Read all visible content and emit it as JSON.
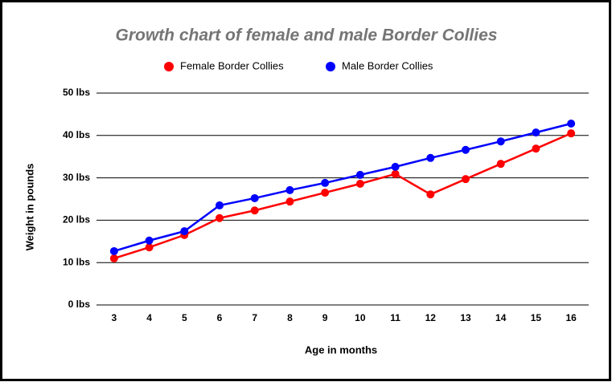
{
  "chart_data": {
    "type": "line",
    "title": "Growth chart of female and male Border Collies",
    "x_label": "Age in months",
    "y_label": "Weight in pounds",
    "categories": [
      3,
      4,
      5,
      6,
      7,
      8,
      9,
      10,
      11,
      12,
      13,
      14,
      15,
      16
    ],
    "series": [
      {
        "name": "Female Border Collies",
        "color": "#ff0000",
        "values": [
          11.0,
          13.6,
          16.5,
          20.5,
          22.3,
          24.4,
          26.5,
          28.6,
          30.9,
          26.1,
          29.7,
          33.3,
          36.9,
          40.5
        ]
      },
      {
        "name": "Male Border Collies",
        "color": "#0000ff",
        "values": [
          12.7,
          15.2,
          17.4,
          23.5,
          25.2,
          27.1,
          28.8,
          30.7,
          32.6,
          34.7,
          36.6,
          38.6,
          40.7,
          42.8
        ]
      }
    ],
    "ylim": [
      0,
      50
    ],
    "yticks": [
      {
        "value": 0,
        "label": "0 lbs"
      },
      {
        "value": 10,
        "label": "10 lbs"
      },
      {
        "value": 20,
        "label": "20 lbs"
      },
      {
        "value": 30,
        "label": "30 lbs"
      },
      {
        "value": 40,
        "label": "40 lbs"
      },
      {
        "value": 50,
        "label": "50 lbs"
      }
    ],
    "grid": true
  }
}
